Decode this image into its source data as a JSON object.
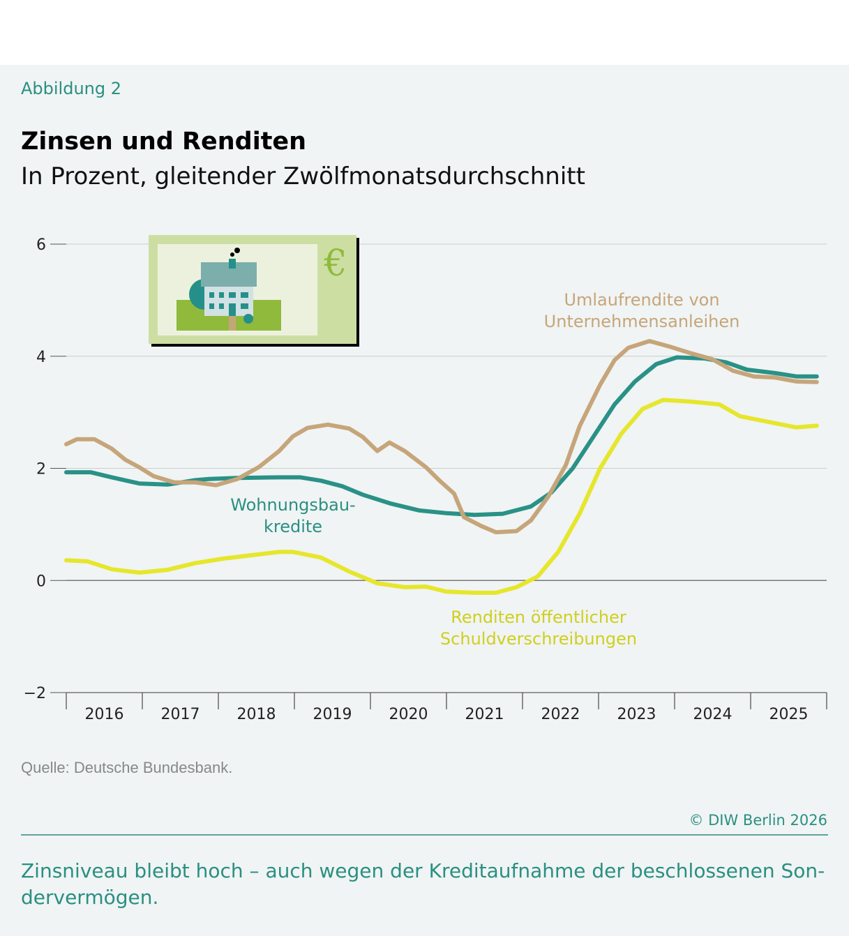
{
  "header": {
    "figure_label": "Abbildung 2",
    "title": "Zinsen und Renditen",
    "subtitle": "In Prozent, gleitender Zwölfmonatsdurchschnitt"
  },
  "footer": {
    "source": "Quelle: Deutsche Bundesbank.",
    "copyright": "© DIW Berlin 2026",
    "caption": "Zinsniveau bleibt hoch – auch wegen der Kreditaufnahme der beschlossenen Son-dervermögen."
  },
  "icon": "banknote-house-euro-icon",
  "chart_data": {
    "type": "line",
    "ylim": [
      -2,
      6
    ],
    "yticks": [
      -2,
      0,
      2,
      4,
      6
    ],
    "ytick_labels": [
      "−2",
      "0",
      "2",
      "4",
      "6"
    ],
    "xlim": [
      2016,
      2026
    ],
    "xtick_labels": [
      "2016",
      "2017",
      "2018",
      "2019",
      "2020",
      "2021",
      "2022",
      "2023",
      "2024",
      "2025"
    ],
    "grid": true,
    "series": [
      {
        "name": "Wohnungsbau-kredite",
        "label_lines": [
          "Wohnungsbau-",
          "kredite"
        ],
        "color": "#2a9187",
        "x": [
          2016.0,
          2016.32,
          2016.6,
          2016.96,
          2017.33,
          2017.7,
          2017.88,
          2018.25,
          2018.8,
          2019.08,
          2019.35,
          2019.63,
          2019.9,
          2020.27,
          2020.64,
          2021.0,
          2021.37,
          2021.74,
          2022.11,
          2022.38,
          2022.66,
          2022.93,
          2023.21,
          2023.48,
          2023.76,
          2024.03,
          2024.4,
          2024.68,
          2024.95,
          2025.32,
          2025.6,
          2025.87
        ],
        "y": [
          1.93,
          1.93,
          1.84,
          1.73,
          1.71,
          1.79,
          1.81,
          1.83,
          1.84,
          1.84,
          1.78,
          1.68,
          1.53,
          1.37,
          1.25,
          1.2,
          1.17,
          1.19,
          1.32,
          1.57,
          2.0,
          2.56,
          3.14,
          3.55,
          3.86,
          3.98,
          3.96,
          3.89,
          3.76,
          3.7,
          3.64,
          3.64
        ]
      },
      {
        "name": "Umlaufrendite von Unternehmensanleihen",
        "label_lines": [
          "Umlaufrendite von",
          "Unternehmensanleihen"
        ],
        "color": "#c6a57a",
        "x": [
          2016.0,
          2016.14,
          2016.37,
          2016.6,
          2016.78,
          2016.96,
          2017.15,
          2017.42,
          2017.7,
          2017.97,
          2018.25,
          2018.53,
          2018.8,
          2018.98,
          2019.17,
          2019.44,
          2019.72,
          2019.9,
          2020.09,
          2020.25,
          2020.45,
          2020.73,
          2020.91,
          2021.1,
          2021.23,
          2021.46,
          2021.65,
          2021.92,
          2022.11,
          2022.34,
          2022.57,
          2022.75,
          2023.02,
          2023.21,
          2023.39,
          2023.67,
          2023.94,
          2024.22,
          2024.49,
          2024.77,
          2025.04,
          2025.32,
          2025.6,
          2025.87
        ],
        "y": [
          2.43,
          2.52,
          2.52,
          2.35,
          2.15,
          2.02,
          1.86,
          1.75,
          1.75,
          1.7,
          1.81,
          2.02,
          2.31,
          2.57,
          2.72,
          2.78,
          2.71,
          2.56,
          2.31,
          2.46,
          2.31,
          2.02,
          1.78,
          1.55,
          1.13,
          0.97,
          0.86,
          0.88,
          1.07,
          1.5,
          2.06,
          2.75,
          3.49,
          3.93,
          4.15,
          4.27,
          4.17,
          4.05,
          3.95,
          3.74,
          3.64,
          3.62,
          3.55,
          3.54
        ]
      },
      {
        "name": "Renditen öffentlicher Schuldverschreibungen",
        "label_lines": [
          "Renditen öffentlicher",
          "Schuldverschreibungen"
        ],
        "color": "#e6e62c",
        "x": [
          2016.0,
          2016.28,
          2016.6,
          2016.96,
          2017.33,
          2017.7,
          2018.07,
          2018.43,
          2018.8,
          2018.98,
          2019.35,
          2019.72,
          2020.09,
          2020.45,
          2020.73,
          2021.0,
          2021.37,
          2021.65,
          2021.92,
          2022.2,
          2022.47,
          2022.75,
          2023.02,
          2023.3,
          2023.58,
          2023.85,
          2024.22,
          2024.59,
          2024.86,
          2025.23,
          2025.6,
          2025.87
        ],
        "y": [
          0.36,
          0.34,
          0.2,
          0.14,
          0.19,
          0.31,
          0.39,
          0.45,
          0.51,
          0.51,
          0.41,
          0.16,
          -0.05,
          -0.12,
          -0.11,
          -0.2,
          -0.22,
          -0.22,
          -0.12,
          0.07,
          0.51,
          1.19,
          2.0,
          2.62,
          3.06,
          3.22,
          3.19,
          3.14,
          2.93,
          2.83,
          2.73,
          2.76
        ]
      }
    ]
  }
}
